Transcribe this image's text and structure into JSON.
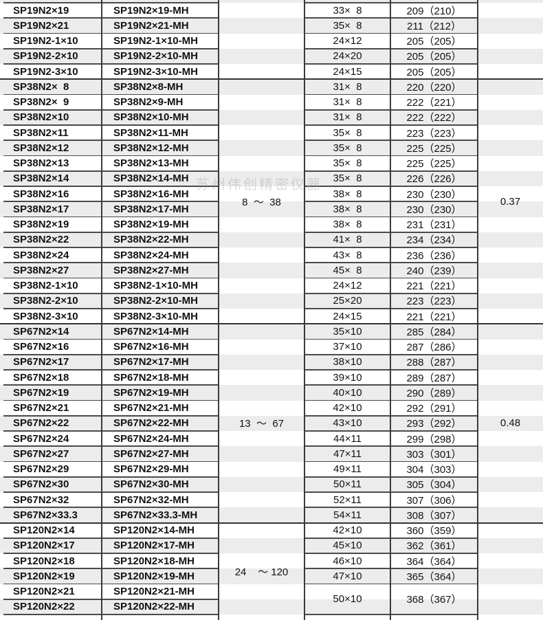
{
  "watermark": "苏州伟创精密仪器",
  "groups": [
    {
      "range": "",
      "value": "",
      "rows": [
        {
          "part": "SP19N2×19",
          "mh": "SP19N2×19-MH",
          "dim": "33×  8",
          "weight": "209（210）"
        },
        {
          "part": "SP19N2×21",
          "mh": "SP19N2×21-MH",
          "dim": "35×  8",
          "weight": "211（212）"
        },
        {
          "part": "SP19N2-1×10",
          "mh": "SP19N2-1×10-MH",
          "dim": "24×12",
          "weight": "205（205）"
        },
        {
          "part": "SP19N2-2×10",
          "mh": "SP19N2-2×10-MH",
          "dim": "24×20",
          "weight": "205（205）"
        },
        {
          "part": "SP19N2-3×10",
          "mh": "SP19N2-3×10-MH",
          "dim": "24×15",
          "weight": "205（205）"
        }
      ]
    },
    {
      "range": "8  ～  38",
      "value": "0.37",
      "rows": [
        {
          "part": "SP38N2×  8",
          "mh": "SP38N2×8-MH",
          "dim": "31×  8",
          "weight": "220（220）"
        },
        {
          "part": "SP38N2×  9",
          "mh": "SP38N2×9-MH",
          "dim": "31×  8",
          "weight": "222（221）"
        },
        {
          "part": "SP38N2×10",
          "mh": "SP38N2×10-MH",
          "dim": "31×  8",
          "weight": "222（222）"
        },
        {
          "part": "SP38N2×11",
          "mh": "SP38N2×11-MH",
          "dim": "35×  8",
          "weight": "223（223）"
        },
        {
          "part": "SP38N2×12",
          "mh": "SP38N2×12-MH",
          "dim": "35×  8",
          "weight": "225（225）"
        },
        {
          "part": "SP38N2×13",
          "mh": "SP38N2×13-MH",
          "dim": "35×  8",
          "weight": "225（225）"
        },
        {
          "part": "SP38N2×14",
          "mh": "SP38N2×14-MH",
          "dim": "35×  8",
          "weight": "226（226）"
        },
        {
          "part": "SP38N2×16",
          "mh": "SP38N2×16-MH",
          "dim": "38×  8",
          "weight": "230（230）"
        },
        {
          "part": "SP38N2×17",
          "mh": "SP38N2×17-MH",
          "dim": "38×  8",
          "weight": "230（230）"
        },
        {
          "part": "SP38N2×19",
          "mh": "SP38N2×19-MH",
          "dim": "38×  8",
          "weight": "231（231）"
        },
        {
          "part": "SP38N2×22",
          "mh": "SP38N2×22-MH",
          "dim": "41×  8",
          "weight": "234（234）"
        },
        {
          "part": "SP38N2×24",
          "mh": "SP38N2×24-MH",
          "dim": "43×  8",
          "weight": "236（236）"
        },
        {
          "part": "SP38N2×27",
          "mh": "SP38N2×27-MH",
          "dim": "45×  8",
          "weight": "240（239）"
        },
        {
          "part": "SP38N2-1×10",
          "mh": "SP38N2-1×10-MH",
          "dim": "24×12",
          "weight": "221（221）"
        },
        {
          "part": "SP38N2-2×10",
          "mh": "SP38N2-2×10-MH",
          "dim": "25×20",
          "weight": "223（223）"
        },
        {
          "part": "SP38N2-3×10",
          "mh": "SP38N2-3×10-MH",
          "dim": "24×15",
          "weight": "221（221）"
        }
      ]
    },
    {
      "range": "13  ～  67",
      "value": "0.48",
      "rows": [
        {
          "part": "SP67N2×14",
          "mh": "SP67N2×14-MH",
          "dim": "35×10",
          "weight": "285（284）"
        },
        {
          "part": "SP67N2×16",
          "mh": "SP67N2×16-MH",
          "dim": "37×10",
          "weight": "287（286）"
        },
        {
          "part": "SP67N2×17",
          "mh": "SP67N2×17-MH",
          "dim": "38×10",
          "weight": "288（287）"
        },
        {
          "part": "SP67N2×18",
          "mh": "SP67N2×18-MH",
          "dim": "39×10",
          "weight": "289（287）"
        },
        {
          "part": "SP67N2×19",
          "mh": "SP67N2×19-MH",
          "dim": "40×10",
          "weight": "290（289）"
        },
        {
          "part": "SP67N2×21",
          "mh": "SP67N2×21-MH",
          "dim": "42×10",
          "weight": "292（291）"
        },
        {
          "part": "SP67N2×22",
          "mh": "SP67N2×22-MH",
          "dim": "43×10",
          "weight": "293（292）"
        },
        {
          "part": "SP67N2×24",
          "mh": "SP67N2×24-MH",
          "dim": "44×11",
          "weight": "299（298）"
        },
        {
          "part": "SP67N2×27",
          "mh": "SP67N2×27-MH",
          "dim": "47×11",
          "weight": "303（301）"
        },
        {
          "part": "SP67N2×29",
          "mh": "SP67N2×29-MH",
          "dim": "49×11",
          "weight": "304（303）"
        },
        {
          "part": "SP67N2×30",
          "mh": "SP67N2×30-MH",
          "dim": "50×11",
          "weight": "305（304）"
        },
        {
          "part": "SP67N2×32",
          "mh": "SP67N2×32-MH",
          "dim": "52×11",
          "weight": "307（306）"
        },
        {
          "part": "SP67N2×33.3",
          "mh": "SP67N2×33.3-MH",
          "dim": "54×11",
          "weight": "308（307）"
        }
      ]
    },
    {
      "range": "24    ～ 120",
      "value": "",
      "rows": [
        {
          "part": "SP120N2×14",
          "mh": "SP120N2×14-MH",
          "dim": "42×10",
          "weight": "360（359）"
        },
        {
          "part": "SP120N2×17",
          "mh": "SP120N2×17-MH",
          "dim": "45×10",
          "weight": "362（361）"
        },
        {
          "part": "SP120N2×18",
          "mh": "SP120N2×18-MH",
          "dim": "46×10",
          "weight": "364（364）"
        },
        {
          "part": "SP120N2×19",
          "mh": "SP120N2×19-MH",
          "dim": "47×10",
          "weight": "365（364）"
        },
        {
          "part": "SP120N2×21",
          "mh": "SP120N2×21-MH",
          "dim": "50×10",
          "weight": "368（367）"
        },
        {
          "part": "SP120N2×22",
          "mh": "SP120N2×22-MH",
          "dim": null,
          "weight": null
        }
      ]
    }
  ]
}
